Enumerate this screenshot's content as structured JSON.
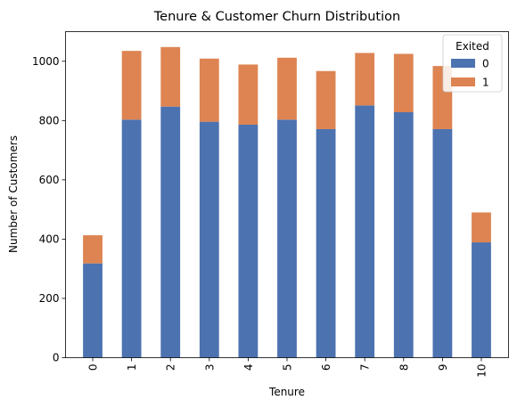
{
  "chart_data": {
    "type": "bar",
    "stacked": true,
    "title": "Tenure & Customer Churn Distribution",
    "xlabel": "Tenure",
    "ylabel": "Number of Customers",
    "categories": [
      "0",
      "1",
      "2",
      "3",
      "4",
      "5",
      "6",
      "7",
      "8",
      "9",
      "10"
    ],
    "ylim": [
      0,
      1100
    ],
    "yticks": [
      0,
      200,
      400,
      600,
      800,
      1000
    ],
    "grid": false,
    "legend": {
      "title": "Exited",
      "position": "top-right"
    },
    "series": [
      {
        "name": "0",
        "color": "#4c72b0",
        "values": [
          318,
          803,
          847,
          796,
          786,
          803,
          771,
          851,
          828,
          771,
          389
        ]
      },
      {
        "name": "1",
        "color": "#dd8452",
        "values": [
          95,
          232,
          201,
          213,
          203,
          209,
          196,
          177,
          197,
          213,
          101
        ]
      }
    ]
  }
}
